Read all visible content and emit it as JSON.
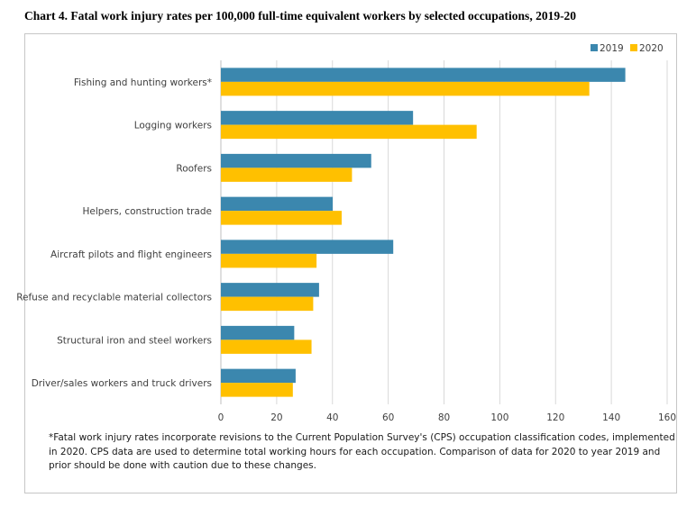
{
  "chart_data": {
    "type": "bar",
    "orientation": "horizontal",
    "title": "Chart 4. Fatal work injury rates per 100,000 full-time equivalent workers by selected occupations, 2019-20",
    "categories": [
      "Fishing and hunting workers*",
      "Logging workers",
      "Roofers",
      "Helpers, construction trade",
      "Aircraft pilots and flight engineers",
      "Refuse and recyclable material collectors",
      "Structural iron and steel workers",
      "Driver/sales workers and truck drivers"
    ],
    "series": [
      {
        "name": "2019",
        "color": "#3b87ae",
        "values": [
          145.0,
          68.9,
          53.9,
          40.1,
          61.8,
          35.2,
          26.3,
          26.8
        ]
      },
      {
        "name": "2020",
        "color": "#ffc000",
        "values": [
          132.1,
          91.7,
          47.0,
          43.3,
          34.3,
          33.1,
          32.5,
          25.8
        ]
      }
    ],
    "xlim": [
      0,
      160
    ],
    "xticks": [
      "0",
      "20",
      "40",
      "60",
      "80",
      "100",
      "120",
      "140",
      "160"
    ],
    "grid": "vertical",
    "legend_position": "top-right"
  },
  "footnote": "*Fatal work injury rates incorporate revisions to the Current Population Survey's (CPS) occupation classification codes, implemented in 2020. CPS data are used to determine total working hours for each occupation. Comparison of data for 2020 to year 2019 and prior should be done with caution due to these changes."
}
